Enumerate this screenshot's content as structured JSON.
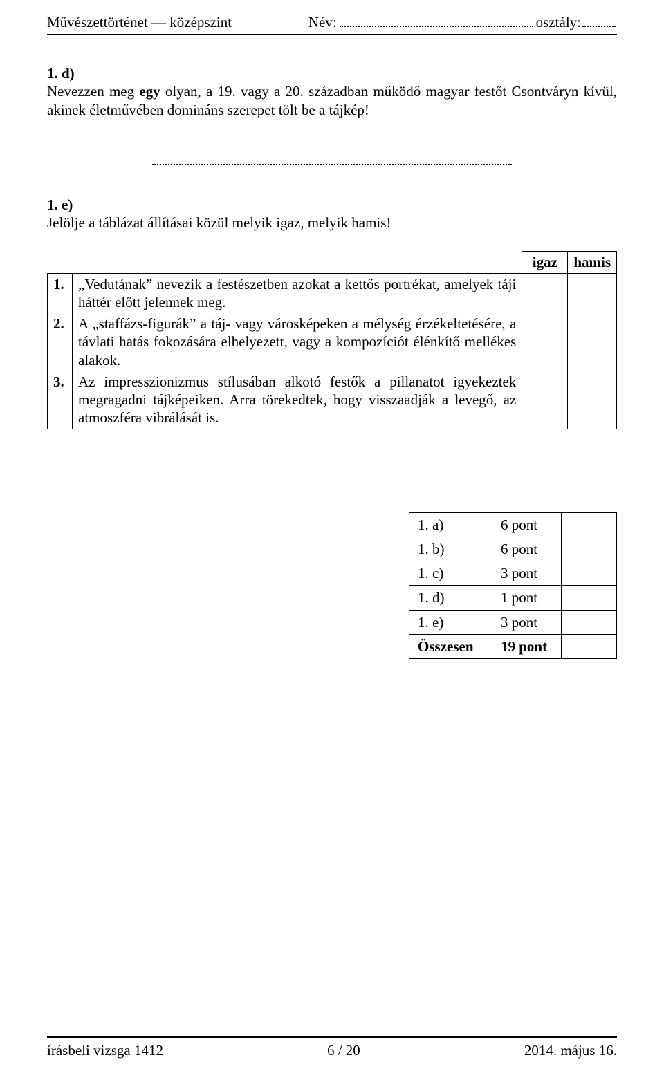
{
  "header": {
    "left": "Művészettörténet — középszint",
    "name_label": "Név:",
    "class_label": "osztály:"
  },
  "q1d": {
    "heading": "1. d)",
    "text_parts": [
      "Nevezzen meg ",
      "egy",
      " olyan, a 19. vagy a 20. században működő magyar festőt Csontváryn kívül, akinek életművében domináns szerepet tölt be a tájkép!"
    ]
  },
  "q1e": {
    "heading": "1. e)",
    "text": "Jelölje a táblázat állításai közül melyik igaz, melyik hamis!"
  },
  "tf": {
    "col_true": "igaz",
    "col_false": "hamis",
    "rows": [
      {
        "n": "1.",
        "text": "„Vedutának” nevezik a festészetben azokat a kettős portrékat, amelyek táji háttér előtt jelennek meg."
      },
      {
        "n": "2.",
        "text": "A „staffázs-figurák” a táj- vagy városképeken a mélység érzékeltetésére, a távlati hatás fokozására elhelyezett, vagy a kompozíciót élénkítő mellékes alakok."
      },
      {
        "n": "3.",
        "text": "Az impresszionizmus stílusában alkotó festők a pillanatot igyekeztek megragadni tájképeiken. Arra törekedtek, hogy visszaadják a levegő, az atmoszféra vibrálását is."
      }
    ]
  },
  "scores": {
    "rows": [
      {
        "label": "1. a)",
        "pts": "6 pont"
      },
      {
        "label": "1. b)",
        "pts": "6 pont"
      },
      {
        "label": "1. c)",
        "pts": "3 pont"
      },
      {
        "label": "1. d)",
        "pts": "1 pont"
      },
      {
        "label": "1. e)",
        "pts": "3 pont"
      }
    ],
    "total_label": "Összesen",
    "total_pts": "19 pont"
  },
  "footer": {
    "left": "írásbeli vizsga 1412",
    "center": "6 / 20",
    "right": "2014. május 16."
  }
}
